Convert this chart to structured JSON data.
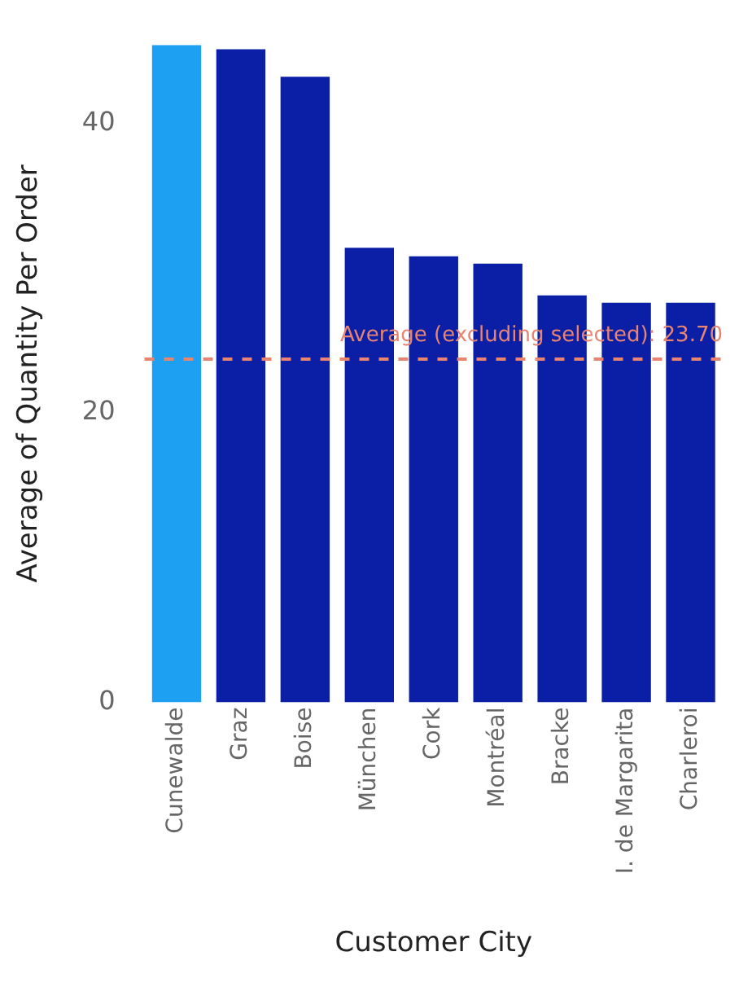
{
  "chart_data": {
    "type": "bar",
    "xlabel": "Customer City",
    "ylabel": "Average of Quantity Per Order",
    "categories": [
      "Cunewalde",
      "Graz",
      "Boise",
      "München",
      "Cork",
      "Montréal",
      "Bracke",
      "I. de Margarita",
      "Charleroi"
    ],
    "values": [
      45.4,
      45.1,
      43.2,
      31.4,
      30.8,
      30.3,
      28.1,
      27.6,
      27.6
    ],
    "colors": [
      "#1ea0f2",
      "#0b1fa6",
      "#0b1fa6",
      "#0b1fa6",
      "#0b1fa6",
      "#0b1fa6",
      "#0b1fa6",
      "#0b1fa6",
      "#0b1fa6"
    ],
    "ylim": [
      0,
      45.4
    ],
    "yticks": [
      0,
      20,
      40
    ],
    "grid": false,
    "legend": false,
    "ref_lines": [
      {
        "axis": "y",
        "value": 23.7,
        "label": "Average (excluding selected): 23.70",
        "color": "#e8846f",
        "line_style": "dashed"
      }
    ]
  }
}
